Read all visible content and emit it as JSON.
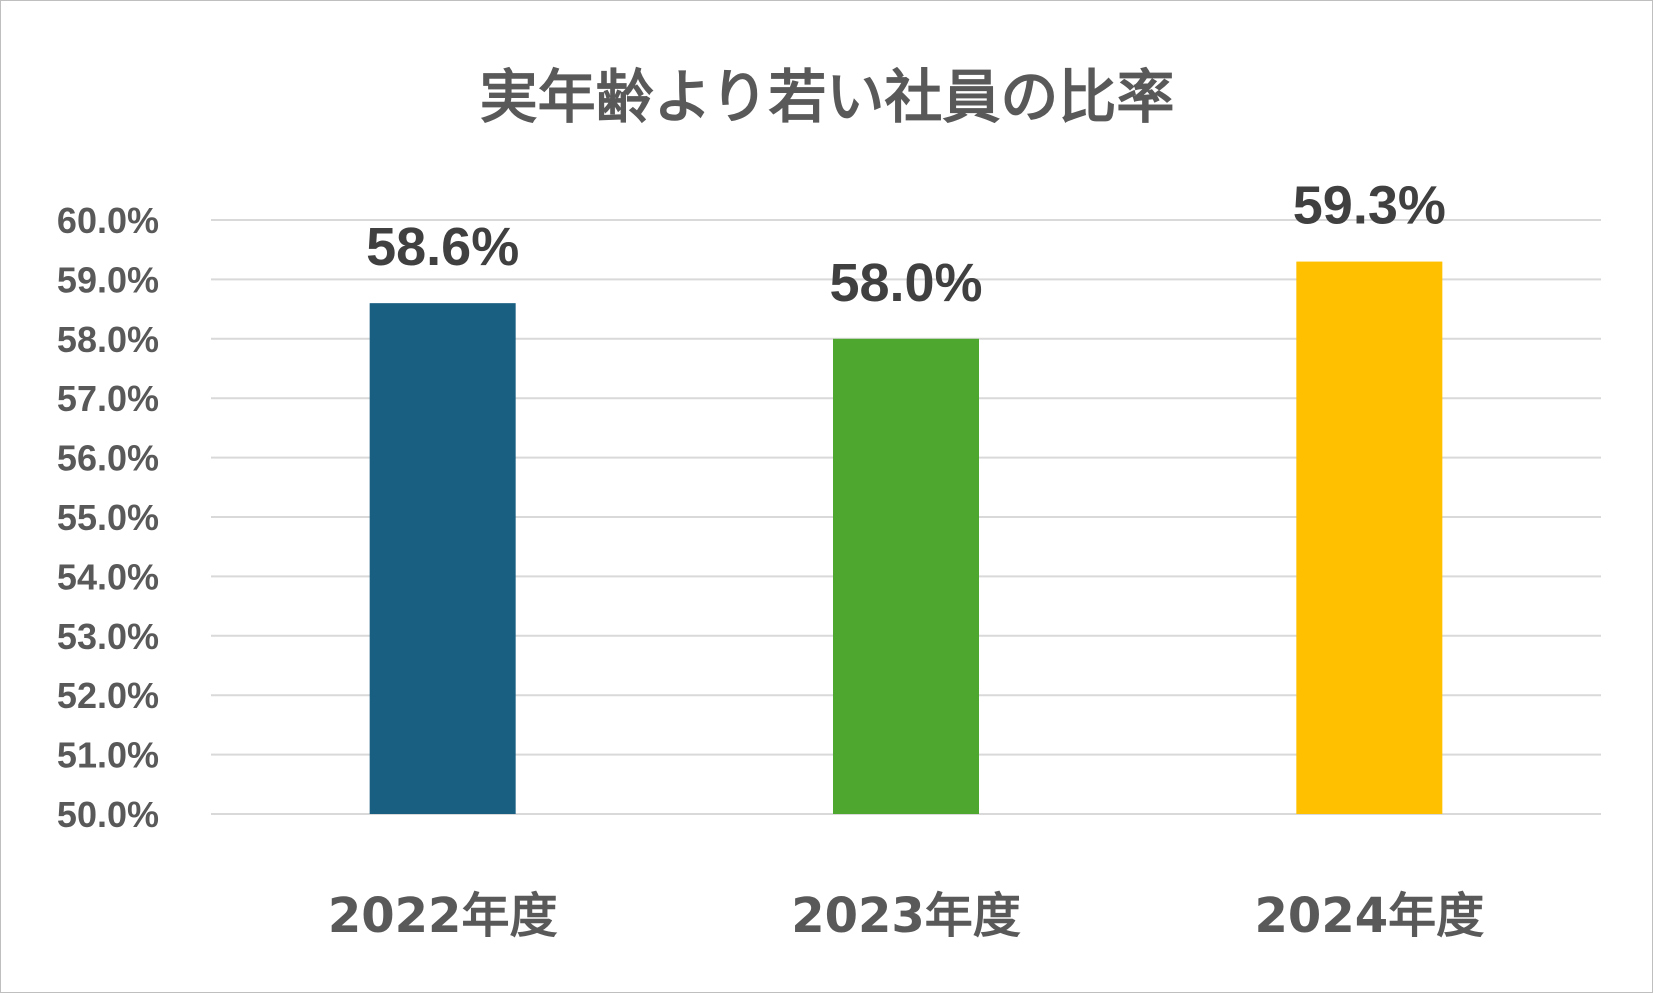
{
  "chart_data": {
    "type": "bar",
    "title": "実年齢より若い社員の比率",
    "xlabel": "",
    "ylabel": "",
    "categories": [
      "2022年度",
      "2023年度",
      "2024年度"
    ],
    "values": [
      58.6,
      58.0,
      59.3
    ],
    "data_labels": [
      "58.6%",
      "58.0%",
      "59.3%"
    ],
    "colors": [
      "#185f82",
      "#4ea72e",
      "#ffc000"
    ],
    "ylim": [
      50.0,
      60.0
    ],
    "yticks": [
      50.0,
      51.0,
      52.0,
      53.0,
      54.0,
      55.0,
      56.0,
      57.0,
      58.0,
      59.0,
      60.0
    ],
    "ytick_labels": [
      "50.0%",
      "51.0%",
      "52.0%",
      "53.0%",
      "54.0%",
      "55.0%",
      "56.0%",
      "57.0%",
      "58.0%",
      "59.0%",
      "60.0%"
    ],
    "grid": true,
    "legend": "none"
  }
}
